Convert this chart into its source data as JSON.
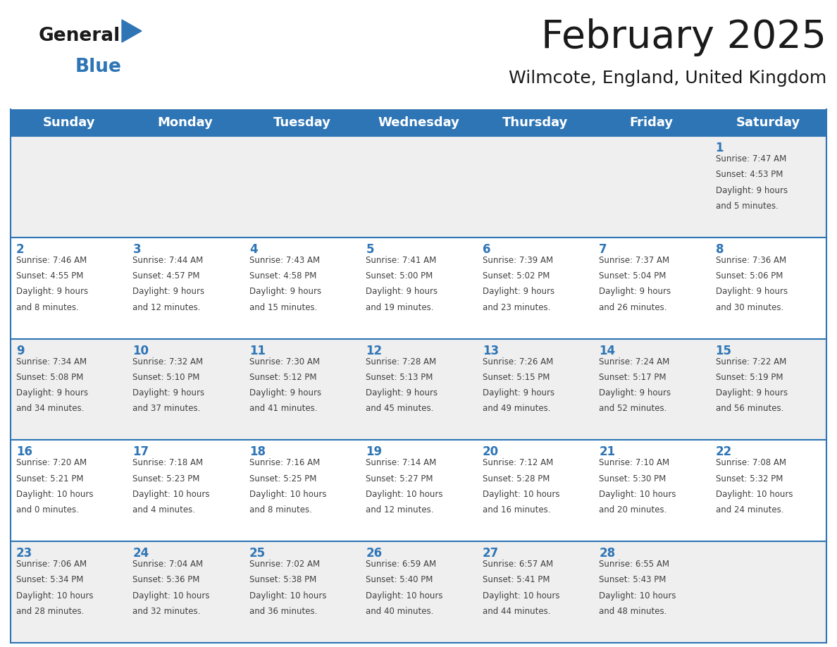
{
  "title": "February 2025",
  "subtitle": "Wilmcote, England, United Kingdom",
  "header_color": "#2E75B6",
  "header_text_color": "#FFFFFF",
  "day_names": [
    "Sunday",
    "Monday",
    "Tuesday",
    "Wednesday",
    "Thursday",
    "Friday",
    "Saturday"
  ],
  "title_color": "#1a1a1a",
  "subtitle_color": "#1a1a1a",
  "cell_bg_white": "#FFFFFF",
  "cell_bg_grey": "#EFEFEF",
  "border_color": "#2E75B6",
  "text_color": "#404040",
  "date_color": "#2E75B6",
  "logo_general_color": "#1a1a1a",
  "logo_blue_color": "#2E75B6",
  "logo_triangle_color": "#2E75B6",
  "calendar": [
    [
      null,
      null,
      null,
      null,
      null,
      null,
      1
    ],
    [
      2,
      3,
      4,
      5,
      6,
      7,
      8
    ],
    [
      9,
      10,
      11,
      12,
      13,
      14,
      15
    ],
    [
      16,
      17,
      18,
      19,
      20,
      21,
      22
    ],
    [
      23,
      24,
      25,
      26,
      27,
      28,
      null
    ]
  ],
  "row_bg": [
    "grey",
    "white",
    "grey",
    "white",
    "grey"
  ],
  "day_data": {
    "1": {
      "sunrise": "7:47 AM",
      "sunset": "4:53 PM",
      "daylight_hours": 9,
      "daylight_minutes": 5
    },
    "2": {
      "sunrise": "7:46 AM",
      "sunset": "4:55 PM",
      "daylight_hours": 9,
      "daylight_minutes": 8
    },
    "3": {
      "sunrise": "7:44 AM",
      "sunset": "4:57 PM",
      "daylight_hours": 9,
      "daylight_minutes": 12
    },
    "4": {
      "sunrise": "7:43 AM",
      "sunset": "4:58 PM",
      "daylight_hours": 9,
      "daylight_minutes": 15
    },
    "5": {
      "sunrise": "7:41 AM",
      "sunset": "5:00 PM",
      "daylight_hours": 9,
      "daylight_minutes": 19
    },
    "6": {
      "sunrise": "7:39 AM",
      "sunset": "5:02 PM",
      "daylight_hours": 9,
      "daylight_minutes": 23
    },
    "7": {
      "sunrise": "7:37 AM",
      "sunset": "5:04 PM",
      "daylight_hours": 9,
      "daylight_minutes": 26
    },
    "8": {
      "sunrise": "7:36 AM",
      "sunset": "5:06 PM",
      "daylight_hours": 9,
      "daylight_minutes": 30
    },
    "9": {
      "sunrise": "7:34 AM",
      "sunset": "5:08 PM",
      "daylight_hours": 9,
      "daylight_minutes": 34
    },
    "10": {
      "sunrise": "7:32 AM",
      "sunset": "5:10 PM",
      "daylight_hours": 9,
      "daylight_minutes": 37
    },
    "11": {
      "sunrise": "7:30 AM",
      "sunset": "5:12 PM",
      "daylight_hours": 9,
      "daylight_minutes": 41
    },
    "12": {
      "sunrise": "7:28 AM",
      "sunset": "5:13 PM",
      "daylight_hours": 9,
      "daylight_minutes": 45
    },
    "13": {
      "sunrise": "7:26 AM",
      "sunset": "5:15 PM",
      "daylight_hours": 9,
      "daylight_minutes": 49
    },
    "14": {
      "sunrise": "7:24 AM",
      "sunset": "5:17 PM",
      "daylight_hours": 9,
      "daylight_minutes": 52
    },
    "15": {
      "sunrise": "7:22 AM",
      "sunset": "5:19 PM",
      "daylight_hours": 9,
      "daylight_minutes": 56
    },
    "16": {
      "sunrise": "7:20 AM",
      "sunset": "5:21 PM",
      "daylight_hours": 10,
      "daylight_minutes": 0
    },
    "17": {
      "sunrise": "7:18 AM",
      "sunset": "5:23 PM",
      "daylight_hours": 10,
      "daylight_minutes": 4
    },
    "18": {
      "sunrise": "7:16 AM",
      "sunset": "5:25 PM",
      "daylight_hours": 10,
      "daylight_minutes": 8
    },
    "19": {
      "sunrise": "7:14 AM",
      "sunset": "5:27 PM",
      "daylight_hours": 10,
      "daylight_minutes": 12
    },
    "20": {
      "sunrise": "7:12 AM",
      "sunset": "5:28 PM",
      "daylight_hours": 10,
      "daylight_minutes": 16
    },
    "21": {
      "sunrise": "7:10 AM",
      "sunset": "5:30 PM",
      "daylight_hours": 10,
      "daylight_minutes": 20
    },
    "22": {
      "sunrise": "7:08 AM",
      "sunset": "5:32 PM",
      "daylight_hours": 10,
      "daylight_minutes": 24
    },
    "23": {
      "sunrise": "7:06 AM",
      "sunset": "5:34 PM",
      "daylight_hours": 10,
      "daylight_minutes": 28
    },
    "24": {
      "sunrise": "7:04 AM",
      "sunset": "5:36 PM",
      "daylight_hours": 10,
      "daylight_minutes": 32
    },
    "25": {
      "sunrise": "7:02 AM",
      "sunset": "5:38 PM",
      "daylight_hours": 10,
      "daylight_minutes": 36
    },
    "26": {
      "sunrise": "6:59 AM",
      "sunset": "5:40 PM",
      "daylight_hours": 10,
      "daylight_minutes": 40
    },
    "27": {
      "sunrise": "6:57 AM",
      "sunset": "5:41 PM",
      "daylight_hours": 10,
      "daylight_minutes": 44
    },
    "28": {
      "sunrise": "6:55 AM",
      "sunset": "5:43 PM",
      "daylight_hours": 10,
      "daylight_minutes": 48
    }
  }
}
